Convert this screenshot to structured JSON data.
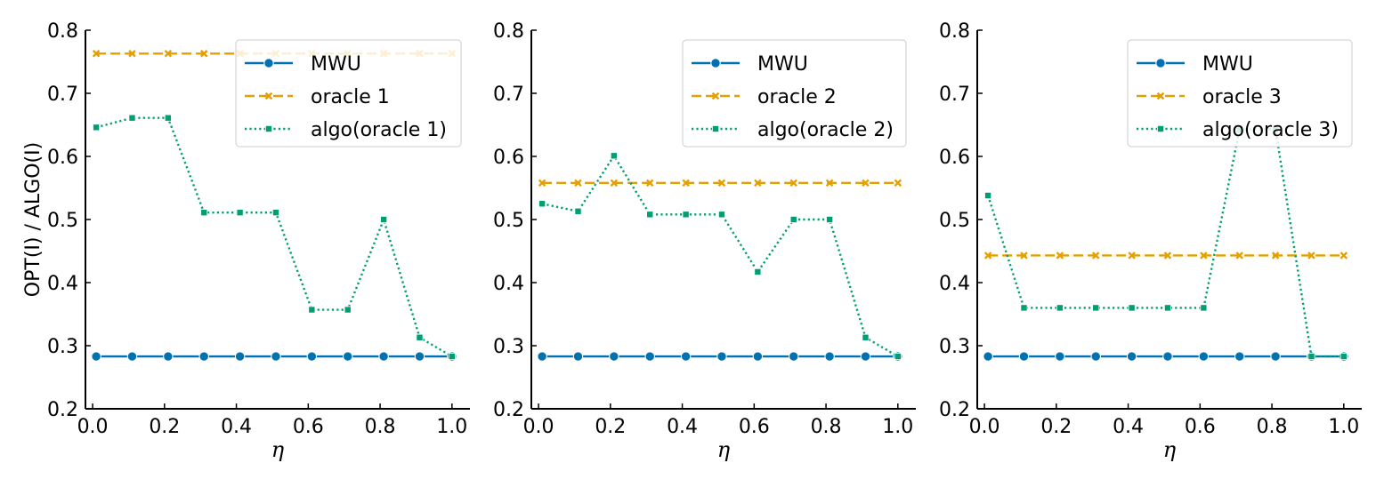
{
  "chart_data": [
    {
      "type": "line",
      "title": "",
      "xlabel": "η",
      "ylabel": "OPT(I) / ALGO(I)",
      "xlim": [
        -0.02,
        1.05
      ],
      "ylim": [
        0.2,
        0.8
      ],
      "xticks": [
        "0.0",
        "0.2",
        "0.4",
        "0.6",
        "0.8",
        "1.0"
      ],
      "yticks": [
        "0.2",
        "0.3",
        "0.4",
        "0.5",
        "0.6",
        "0.7",
        "0.8"
      ],
      "legend_position": "top-right",
      "x": [
        0.01,
        0.11,
        0.21,
        0.31,
        0.41,
        0.51,
        0.61,
        0.71,
        0.81,
        0.91,
        1.0
      ],
      "series": [
        {
          "name": "MWU",
          "color": "#0072B2",
          "style": "solid",
          "marker": "circle",
          "values": [
            0.283,
            0.283,
            0.283,
            0.283,
            0.283,
            0.283,
            0.283,
            0.283,
            0.283,
            0.283,
            0.283
          ]
        },
        {
          "name": "oracle 1",
          "color": "#E69F00",
          "style": "dashed",
          "marker": "x",
          "values": [
            0.763,
            0.763,
            0.763,
            0.763,
            0.763,
            0.763,
            0.763,
            0.763,
            0.763,
            0.763,
            0.763
          ]
        },
        {
          "name": "algo(oracle 1)",
          "color": "#009E73",
          "style": "dotted",
          "marker": "square",
          "values": [
            0.646,
            0.661,
            0.661,
            0.511,
            0.511,
            0.511,
            0.357,
            0.357,
            0.5,
            0.313,
            0.283
          ]
        }
      ]
    },
    {
      "type": "line",
      "title": "",
      "xlabel": "η",
      "ylabel": "",
      "xlim": [
        -0.02,
        1.05
      ],
      "ylim": [
        0.2,
        0.8
      ],
      "xticks": [
        "0.0",
        "0.2",
        "0.4",
        "0.6",
        "0.8",
        "1.0"
      ],
      "yticks": [
        "0.2",
        "0.3",
        "0.4",
        "0.5",
        "0.6",
        "0.7",
        "0.8"
      ],
      "legend_position": "top-right",
      "x": [
        0.01,
        0.11,
        0.21,
        0.31,
        0.41,
        0.51,
        0.61,
        0.71,
        0.81,
        0.91,
        1.0
      ],
      "series": [
        {
          "name": "MWU",
          "color": "#0072B2",
          "style": "solid",
          "marker": "circle",
          "values": [
            0.283,
            0.283,
            0.283,
            0.283,
            0.283,
            0.283,
            0.283,
            0.283,
            0.283,
            0.283,
            0.283
          ]
        },
        {
          "name": "oracle 2",
          "color": "#E69F00",
          "style": "dashed",
          "marker": "x",
          "values": [
            0.558,
            0.558,
            0.558,
            0.558,
            0.558,
            0.558,
            0.558,
            0.558,
            0.558,
            0.558,
            0.558
          ]
        },
        {
          "name": "algo(oracle 2)",
          "color": "#009E73",
          "style": "dotted",
          "marker": "square",
          "values": [
            0.525,
            0.513,
            0.601,
            0.508,
            0.508,
            0.508,
            0.417,
            0.5,
            0.5,
            0.313,
            0.283
          ]
        }
      ]
    },
    {
      "type": "line",
      "title": "",
      "xlabel": "η",
      "ylabel": "",
      "xlim": [
        -0.02,
        1.05
      ],
      "ylim": [
        0.2,
        0.8
      ],
      "xticks": [
        "0.0",
        "0.2",
        "0.4",
        "0.6",
        "0.8",
        "1.0"
      ],
      "yticks": [
        "0.2",
        "0.3",
        "0.4",
        "0.5",
        "0.6",
        "0.7",
        "0.8"
      ],
      "legend_position": "top-right",
      "x": [
        0.01,
        0.11,
        0.21,
        0.31,
        0.41,
        0.51,
        0.61,
        0.71,
        0.81,
        0.91,
        1.0
      ],
      "series": [
        {
          "name": "MWU",
          "color": "#0072B2",
          "style": "solid",
          "marker": "circle",
          "values": [
            0.283,
            0.283,
            0.283,
            0.283,
            0.283,
            0.283,
            0.283,
            0.283,
            0.283,
            0.283,
            0.283
          ]
        },
        {
          "name": "oracle 3",
          "color": "#E69F00",
          "style": "dashed",
          "marker": "x",
          "values": [
            0.443,
            0.443,
            0.443,
            0.443,
            0.443,
            0.443,
            0.443,
            0.443,
            0.443,
            0.443,
            0.443
          ]
        },
        {
          "name": "algo(oracle 3)",
          "color": "#009E73",
          "style": "dotted",
          "marker": "square",
          "values": [
            0.538,
            0.36,
            0.36,
            0.36,
            0.36,
            0.36,
            0.36,
            0.643,
            0.643,
            0.283,
            0.283
          ]
        }
      ]
    }
  ]
}
